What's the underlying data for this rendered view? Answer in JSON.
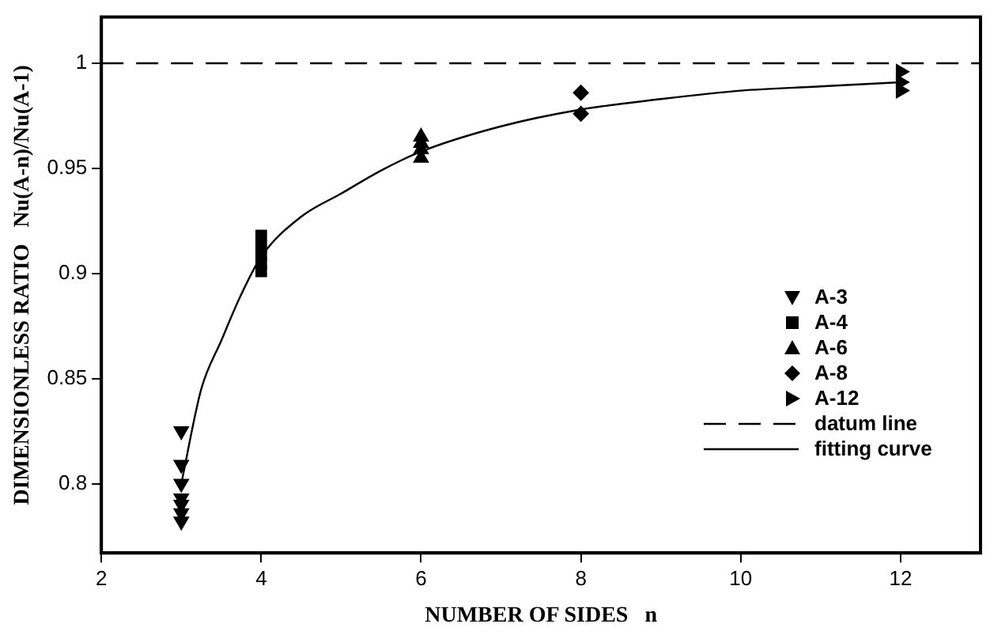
{
  "chart_data": {
    "type": "scatter",
    "xlabel": "NUMBER OF SIDES   n",
    "ylabel": "DIMENSIONLESS RATIO   Nu(A-n)/Nu(A-1)",
    "xlim": [
      2,
      13
    ],
    "xticks": [
      2,
      4,
      6,
      8,
      10,
      12
    ],
    "ylim": [
      0.767,
      1.022
    ],
    "yticks": [
      0.8,
      0.85,
      0.9,
      0.95,
      1
    ],
    "grid": false,
    "legend": "bottom right",
    "series": [
      {
        "name": "A-3",
        "color": "#000000",
        "marker": "triangle-down",
        "x": [
          3,
          3,
          3,
          3,
          3,
          3,
          3
        ],
        "values": [
          0.825,
          0.809,
          0.8,
          0.793,
          0.79,
          0.786,
          0.782
        ]
      },
      {
        "name": "A-4",
        "color": "#000000",
        "marker": "square",
        "x": [
          4,
          4,
          4,
          4,
          4
        ],
        "values": [
          0.918,
          0.913,
          0.909,
          0.905,
          0.901
        ]
      },
      {
        "name": "A-6",
        "color": "#000000",
        "marker": "triangle",
        "x": [
          6,
          6,
          6,
          6
        ],
        "values": [
          0.965,
          0.962,
          0.959,
          0.955
        ]
      },
      {
        "name": "A-8",
        "color": "#000000",
        "marker": "diamond",
        "x": [
          8,
          8
        ],
        "values": [
          0.986,
          0.976
        ]
      },
      {
        "name": "A-12",
        "color": "#000000",
        "marker": "triangle-right",
        "x": [
          12,
          12,
          12
        ],
        "values": [
          0.996,
          0.991,
          0.987
        ]
      },
      {
        "name": "fitting curve",
        "type": "line",
        "color": "#000000",
        "marker": "none",
        "line_style": "solid",
        "x": [
          3,
          3.25,
          3.5,
          3.75,
          4,
          4.5,
          5,
          5.5,
          6,
          7,
          8,
          9,
          10,
          11,
          12
        ],
        "values": [
          0.8,
          0.845,
          0.868,
          0.89,
          0.908,
          0.927,
          0.938,
          0.949,
          0.958,
          0.97,
          0.978,
          0.983,
          0.987,
          0.989,
          0.991
        ]
      }
    ],
    "ref_lines": [
      {
        "axis": "y",
        "value": 1,
        "label": "datum line",
        "color": "#000000",
        "line_style": "dashed"
      }
    ]
  }
}
